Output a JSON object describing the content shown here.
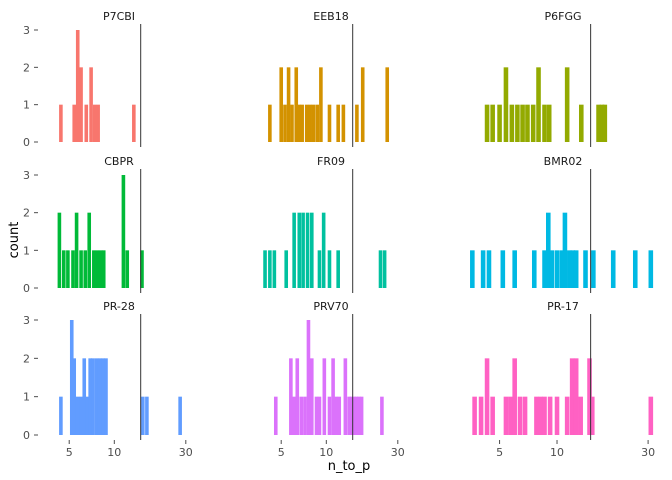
{
  "chart_data": {
    "type": "bar",
    "xlabel": "n_to_p",
    "ylabel": "count",
    "x_scale": "log10",
    "x_ticks": [
      5,
      10,
      30
    ],
    "y_ticks": [
      0,
      1,
      2,
      3
    ],
    "ylim": [
      0,
      3
    ],
    "grid": false,
    "legend": "none",
    "facets": [
      {
        "name": "P7CBI",
        "color": "#F8766D",
        "vline": 15,
        "bars": [
          [
            4.4,
            1
          ],
          [
            5.4,
            1
          ],
          [
            5.7,
            3
          ],
          [
            6.0,
            2
          ],
          [
            6.5,
            1
          ],
          [
            7.0,
            2
          ],
          [
            7.4,
            1
          ],
          [
            7.8,
            1
          ],
          [
            13.5,
            1
          ]
        ]
      },
      {
        "name": "EEB18",
        "color": "#D39200",
        "vline": 15,
        "bars": [
          [
            4.2,
            1
          ],
          [
            5.0,
            2
          ],
          [
            5.3,
            1
          ],
          [
            5.6,
            2
          ],
          [
            5.9,
            1
          ],
          [
            6.3,
            2
          ],
          [
            6.6,
            1
          ],
          [
            6.9,
            1
          ],
          [
            7.4,
            1
          ],
          [
            7.8,
            1
          ],
          [
            8.2,
            1
          ],
          [
            8.7,
            1
          ],
          [
            9.2,
            2
          ],
          [
            10.5,
            1
          ],
          [
            12.0,
            1
          ],
          [
            13.0,
            1
          ],
          [
            16.0,
            1
          ],
          [
            17.5,
            2
          ],
          [
            25.5,
            2
          ]
        ]
      },
      {
        "name": "P6FGG",
        "color": "#93AA00",
        "vline": 15,
        "bars": [
          [
            4.3,
            1
          ],
          [
            4.6,
            1
          ],
          [
            5.0,
            1
          ],
          [
            5.4,
            2
          ],
          [
            5.8,
            1
          ],
          [
            6.2,
            1
          ],
          [
            6.6,
            1
          ],
          [
            7.0,
            1
          ],
          [
            7.5,
            1
          ],
          [
            8.0,
            2
          ],
          [
            8.6,
            1
          ],
          [
            9.1,
            1
          ],
          [
            11.3,
            2
          ],
          [
            13.4,
            1
          ],
          [
            16.5,
            1
          ],
          [
            17.2,
            1
          ],
          [
            17.8,
            1
          ]
        ]
      },
      {
        "name": "CBPR",
        "color": "#00BA38",
        "vline": 15,
        "bars": [
          [
            4.3,
            2
          ],
          [
            4.6,
            1
          ],
          [
            4.9,
            1
          ],
          [
            5.3,
            1
          ],
          [
            5.6,
            2
          ],
          [
            6.0,
            1
          ],
          [
            6.4,
            1
          ],
          [
            6.8,
            2
          ],
          [
            7.3,
            1
          ],
          [
            7.7,
            1
          ],
          [
            8.1,
            1
          ],
          [
            8.5,
            1
          ],
          [
            11.5,
            3
          ],
          [
            12.2,
            1
          ],
          [
            15.3,
            1
          ]
        ]
      },
      {
        "name": "FR09",
        "color": "#00C19F",
        "vline": 15,
        "bars": [
          [
            3.9,
            1
          ],
          [
            4.2,
            1
          ],
          [
            4.5,
            1
          ],
          [
            5.4,
            1
          ],
          [
            6.1,
            2
          ],
          [
            6.6,
            2
          ],
          [
            7.0,
            2
          ],
          [
            7.5,
            2
          ],
          [
            8.0,
            2
          ],
          [
            9.0,
            1
          ],
          [
            9.6,
            2
          ],
          [
            10.5,
            1
          ],
          [
            12.0,
            1
          ],
          [
            23.0,
            1
          ],
          [
            24.5,
            1
          ]
        ]
      },
      {
        "name": "BMR02",
        "color": "#00B9E3",
        "vline": 15,
        "bars": [
          [
            3.6,
            1
          ],
          [
            4.1,
            1
          ],
          [
            4.4,
            1
          ],
          [
            5.2,
            1
          ],
          [
            6.0,
            1
          ],
          [
            7.6,
            1
          ],
          [
            8.6,
            1
          ],
          [
            9.0,
            2
          ],
          [
            9.4,
            1
          ],
          [
            10.0,
            1
          ],
          [
            10.6,
            1
          ],
          [
            11.0,
            2
          ],
          [
            11.6,
            1
          ],
          [
            12.1,
            1
          ],
          [
            12.6,
            1
          ],
          [
            14.1,
            1
          ],
          [
            15.5,
            1
          ],
          [
            19.7,
            1
          ],
          [
            25.7,
            1
          ],
          [
            31.0,
            1
          ]
        ]
      },
      {
        "name": "PR-28",
        "color": "#619CFF",
        "vline": 15,
        "bars": [
          [
            4.4,
            1
          ],
          [
            5.2,
            3
          ],
          [
            5.4,
            2
          ],
          [
            5.7,
            1
          ],
          [
            6.0,
            1
          ],
          [
            6.3,
            2
          ],
          [
            6.6,
            1
          ],
          [
            6.9,
            2
          ],
          [
            7.2,
            2
          ],
          [
            7.6,
            2
          ],
          [
            8.0,
            2
          ],
          [
            8.4,
            2
          ],
          [
            8.8,
            2
          ],
          [
            15.5,
            1
          ],
          [
            16.5,
            1
          ],
          [
            27.5,
            1
          ]
        ]
      },
      {
        "name": "PRV70",
        "color": "#DB72FB",
        "vline": 15,
        "bars": [
          [
            4.6,
            1
          ],
          [
            5.8,
            2
          ],
          [
            6.1,
            1
          ],
          [
            6.4,
            2
          ],
          [
            6.8,
            1
          ],
          [
            7.2,
            1
          ],
          [
            7.6,
            3
          ],
          [
            8.0,
            2
          ],
          [
            8.6,
            1
          ],
          [
            9.0,
            1
          ],
          [
            9.7,
            2
          ],
          [
            10.5,
            1
          ],
          [
            11.1,
            2
          ],
          [
            11.6,
            1
          ],
          [
            12.2,
            1
          ],
          [
            13.4,
            2
          ],
          [
            14.2,
            1
          ],
          [
            14.7,
            1
          ],
          [
            15.3,
            1
          ],
          [
            15.9,
            1
          ],
          [
            16.5,
            1
          ],
          [
            17.2,
            1
          ],
          [
            23.5,
            1
          ]
        ]
      },
      {
        "name": "PR-17",
        "color": "#FF61C3",
        "vline": 15,
        "bars": [
          [
            3.7,
            1
          ],
          [
            4.0,
            1
          ],
          [
            4.3,
            2
          ],
          [
            4.6,
            1
          ],
          [
            5.4,
            1
          ],
          [
            5.7,
            1
          ],
          [
            6.0,
            2
          ],
          [
            6.4,
            1
          ],
          [
            6.8,
            1
          ],
          [
            7.8,
            1
          ],
          [
            8.2,
            1
          ],
          [
            8.6,
            1
          ],
          [
            9.2,
            1
          ],
          [
            10.0,
            1
          ],
          [
            11.3,
            1
          ],
          [
            12.0,
            2
          ],
          [
            12.6,
            2
          ],
          [
            13.3,
            1
          ],
          [
            14.8,
            2
          ],
          [
            15.3,
            1
          ],
          [
            31.0,
            1
          ]
        ]
      }
    ]
  }
}
